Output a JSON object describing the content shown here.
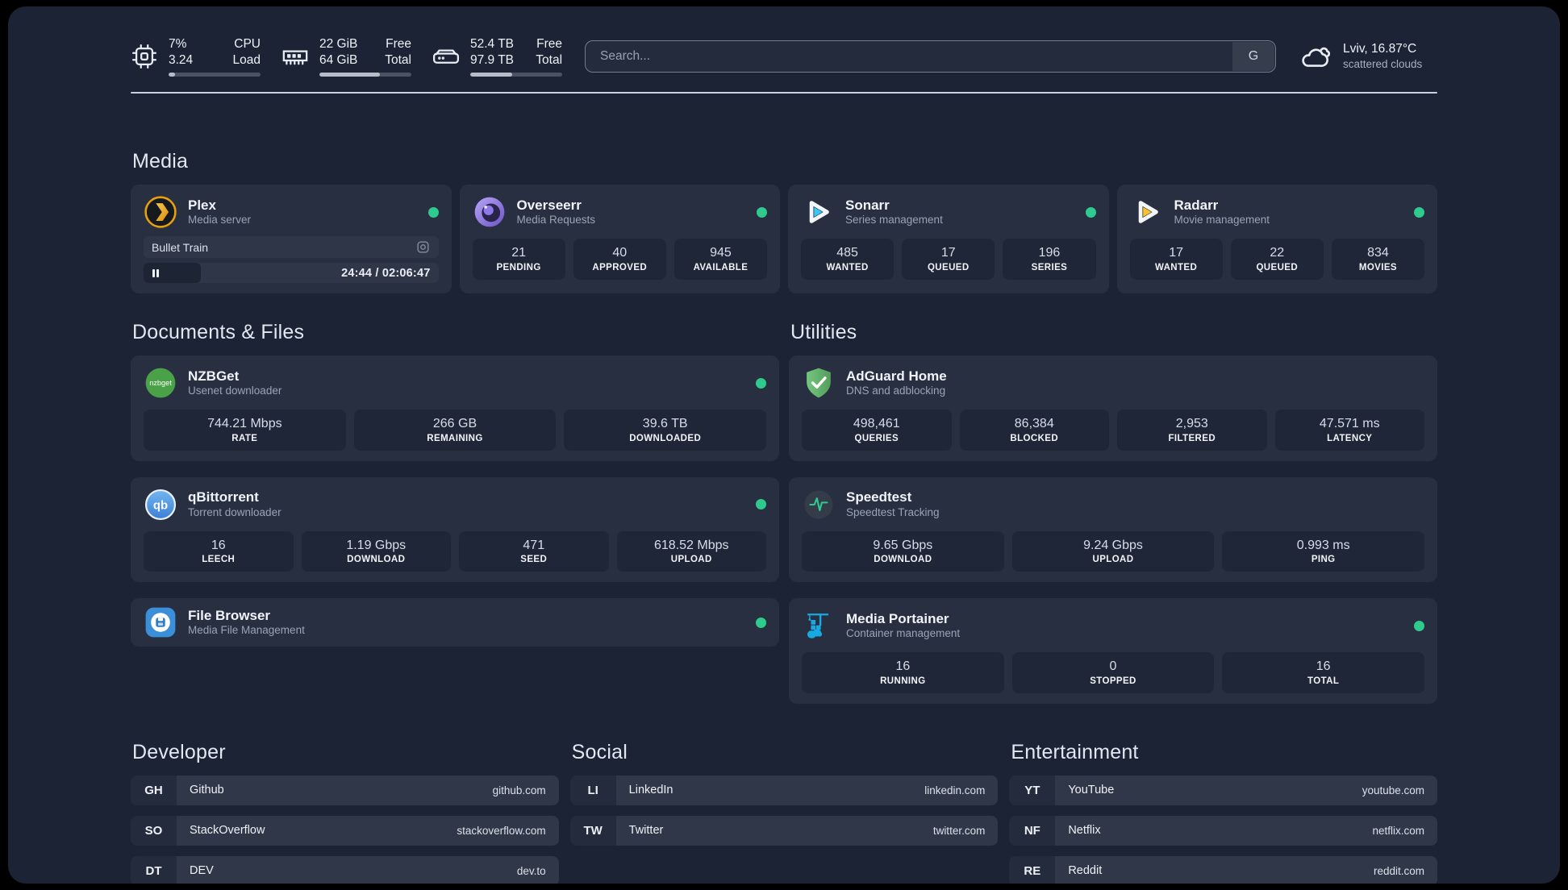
{
  "colors": {
    "status_online": "#2fcb8e",
    "page_background": "#1b2334",
    "card_background": "#272f41",
    "plex_gold": "#e5a00d",
    "sonarr_cyan": "#38c6f4",
    "radarr_yellow": "#fcc12f"
  },
  "topbar": {
    "resources": [
      {
        "icon": "cpu-icon",
        "values": [
          "7%",
          "3.24"
        ],
        "labels": [
          "CPU",
          "Load"
        ],
        "percent_used": 7
      },
      {
        "icon": "memory-icon",
        "values": [
          "22 GiB",
          "64 GiB"
        ],
        "labels": [
          "Free",
          "Total"
        ],
        "percent_used": 66
      },
      {
        "icon": "disk-icon",
        "values": [
          "52.4 TB",
          "97.9 TB"
        ],
        "labels": [
          "Free",
          "Total"
        ],
        "percent_used": 46
      }
    ],
    "search": {
      "placeholder": "Search...",
      "engine_button": "G"
    },
    "weather": {
      "line1": "Lviv, 16.87°C",
      "line2": "scattered clouds"
    }
  },
  "sections": {
    "media": {
      "title": "Media",
      "cards": {
        "plex": {
          "title": "Plex",
          "subtitle": "Media server",
          "status": "online",
          "now_playing": {
            "name": "Bullet Train",
            "time": "24:44 / 02:06:47",
            "elapsed": "24:44",
            "duration": "02:06:47",
            "progress_percent": 19.5
          }
        },
        "overseerr": {
          "title": "Overseerr",
          "subtitle": "Media Requests",
          "status": "online",
          "stats": [
            {
              "value": "21",
              "label": "PENDING"
            },
            {
              "value": "40",
              "label": "APPROVED"
            },
            {
              "value": "945",
              "label": "AVAILABLE"
            }
          ]
        },
        "sonarr": {
          "title": "Sonarr",
          "subtitle": "Series management",
          "status": "online",
          "stats": [
            {
              "value": "485",
              "label": "WANTED"
            },
            {
              "value": "17",
              "label": "QUEUED"
            },
            {
              "value": "196",
              "label": "SERIES"
            }
          ]
        },
        "radarr": {
          "title": "Radarr",
          "subtitle": "Movie management",
          "status": "online",
          "stats": [
            {
              "value": "17",
              "label": "WANTED"
            },
            {
              "value": "22",
              "label": "QUEUED"
            },
            {
              "value": "834",
              "label": "MOVIES"
            }
          ]
        }
      }
    },
    "documents": {
      "title": "Documents & Files",
      "cards": {
        "nzbget": {
          "title": "NZBGet",
          "subtitle": "Usenet downloader",
          "status": "online",
          "stats": [
            {
              "value": "744.21 Mbps",
              "label": "RATE"
            },
            {
              "value": "266 GB",
              "label": "REMAINING"
            },
            {
              "value": "39.6 TB",
              "label": "DOWNLOADED"
            }
          ]
        },
        "qbittorrent": {
          "title": "qBittorrent",
          "subtitle": "Torrent downloader",
          "status": "online",
          "stats": [
            {
              "value": "16",
              "label": "LEECH"
            },
            {
              "value": "1.19 Gbps",
              "label": "DOWNLOAD"
            },
            {
              "value": "471",
              "label": "SEED"
            },
            {
              "value": "618.52 Mbps",
              "label": "UPLOAD"
            }
          ]
        },
        "filebrowser": {
          "title": "File Browser",
          "subtitle": "Media File Management",
          "status": "online"
        }
      }
    },
    "utilities": {
      "title": "Utilities",
      "cards": {
        "adguard": {
          "title": "AdGuard Home",
          "subtitle": "DNS and adblocking",
          "stats": [
            {
              "value": "498,461",
              "label": "QUERIES"
            },
            {
              "value": "86,384",
              "label": "BLOCKED"
            },
            {
              "value": "2,953",
              "label": "FILTERED"
            },
            {
              "value": "47.571 ms",
              "label": "LATENCY"
            }
          ]
        },
        "speedtest": {
          "title": "Speedtest",
          "subtitle": "Speedtest Tracking",
          "stats": [
            {
              "value": "9.65 Gbps",
              "label": "DOWNLOAD"
            },
            {
              "value": "9.24 Gbps",
              "label": "UPLOAD"
            },
            {
              "value": "0.993 ms",
              "label": "PING"
            }
          ]
        },
        "portainer": {
          "title": "Media Portainer",
          "subtitle": "Container management",
          "status": "online",
          "stats": [
            {
              "value": "16",
              "label": "RUNNING"
            },
            {
              "value": "0",
              "label": "STOPPED"
            },
            {
              "value": "16",
              "label": "TOTAL"
            }
          ]
        }
      }
    }
  },
  "bookmarks": [
    {
      "title": "Developer",
      "items": [
        {
          "abbr": "GH",
          "name": "Github",
          "url": "github.com"
        },
        {
          "abbr": "SO",
          "name": "StackOverflow",
          "url": "stackoverflow.com"
        },
        {
          "abbr": "DT",
          "name": "DEV",
          "url": "dev.to"
        }
      ]
    },
    {
      "title": "Social",
      "items": [
        {
          "abbr": "LI",
          "name": "LinkedIn",
          "url": "linkedin.com"
        },
        {
          "abbr": "TW",
          "name": "Twitter",
          "url": "twitter.com"
        }
      ]
    },
    {
      "title": "Entertainment",
      "items": [
        {
          "abbr": "YT",
          "name": "YouTube",
          "url": "youtube.com"
        },
        {
          "abbr": "NF",
          "name": "Netflix",
          "url": "netflix.com"
        },
        {
          "abbr": "RE",
          "name": "Reddit",
          "url": "reddit.com"
        }
      ]
    }
  ]
}
